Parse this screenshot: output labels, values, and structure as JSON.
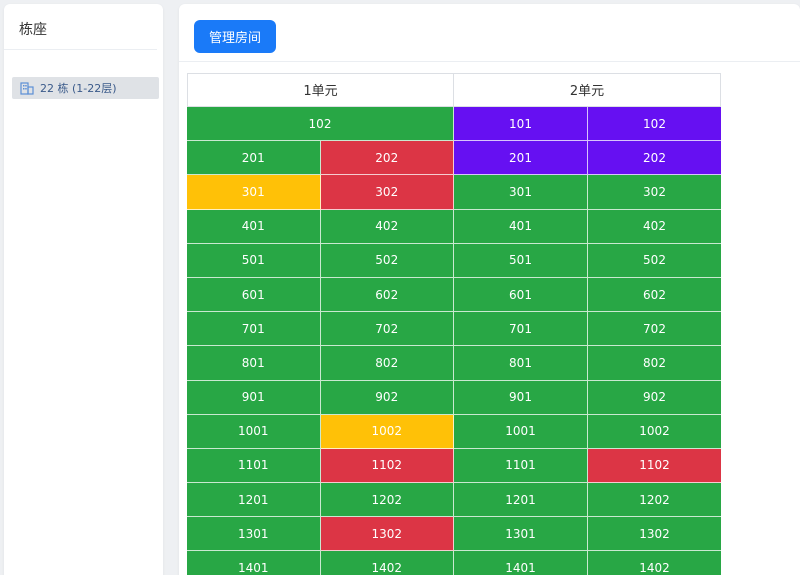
{
  "sidebar": {
    "title": "栋座",
    "items": [
      {
        "label": "22 栋 (1-22层)"
      }
    ]
  },
  "toolbar": {
    "manage_label": "管理房间"
  },
  "colors": {
    "green": "#28a745",
    "red": "#dc3545",
    "yellow": "#ffc107",
    "purple": "#6610f2",
    "button_blue": "#1a7af8"
  },
  "units": [
    {
      "name": "1单元",
      "rows": [
        [
          {
            "room": "102",
            "status": "green"
          }
        ],
        [
          {
            "room": "201",
            "status": "green"
          },
          {
            "room": "202",
            "status": "red"
          }
        ],
        [
          {
            "room": "301",
            "status": "yellow"
          },
          {
            "room": "302",
            "status": "red"
          }
        ],
        [
          {
            "room": "401",
            "status": "green"
          },
          {
            "room": "402",
            "status": "green"
          }
        ],
        [
          {
            "room": "501",
            "status": "green"
          },
          {
            "room": "502",
            "status": "green"
          }
        ],
        [
          {
            "room": "601",
            "status": "green"
          },
          {
            "room": "602",
            "status": "green"
          }
        ],
        [
          {
            "room": "701",
            "status": "green"
          },
          {
            "room": "702",
            "status": "green"
          }
        ],
        [
          {
            "room": "801",
            "status": "green"
          },
          {
            "room": "802",
            "status": "green"
          }
        ],
        [
          {
            "room": "901",
            "status": "green"
          },
          {
            "room": "902",
            "status": "green"
          }
        ],
        [
          {
            "room": "1001",
            "status": "green"
          },
          {
            "room": "1002",
            "status": "yellow"
          }
        ],
        [
          {
            "room": "1101",
            "status": "green"
          },
          {
            "room": "1102",
            "status": "red"
          }
        ],
        [
          {
            "room": "1201",
            "status": "green"
          },
          {
            "room": "1202",
            "status": "green"
          }
        ],
        [
          {
            "room": "1301",
            "status": "green"
          },
          {
            "room": "1302",
            "status": "red"
          }
        ],
        [
          {
            "room": "1401",
            "status": "green"
          },
          {
            "room": "1402",
            "status": "green"
          }
        ]
      ]
    },
    {
      "name": "2单元",
      "rows": [
        [
          {
            "room": "101",
            "status": "purple"
          },
          {
            "room": "102",
            "status": "purple"
          }
        ],
        [
          {
            "room": "201",
            "status": "purple"
          },
          {
            "room": "202",
            "status": "purple"
          }
        ],
        [
          {
            "room": "301",
            "status": "green"
          },
          {
            "room": "302",
            "status": "green"
          }
        ],
        [
          {
            "room": "401",
            "status": "green"
          },
          {
            "room": "402",
            "status": "green"
          }
        ],
        [
          {
            "room": "501",
            "status": "green"
          },
          {
            "room": "502",
            "status": "green"
          }
        ],
        [
          {
            "room": "601",
            "status": "green"
          },
          {
            "room": "602",
            "status": "green"
          }
        ],
        [
          {
            "room": "701",
            "status": "green"
          },
          {
            "room": "702",
            "status": "green"
          }
        ],
        [
          {
            "room": "801",
            "status": "green"
          },
          {
            "room": "802",
            "status": "green"
          }
        ],
        [
          {
            "room": "901",
            "status": "green"
          },
          {
            "room": "902",
            "status": "green"
          }
        ],
        [
          {
            "room": "1001",
            "status": "green"
          },
          {
            "room": "1002",
            "status": "green"
          }
        ],
        [
          {
            "room": "1101",
            "status": "green"
          },
          {
            "room": "1102",
            "status": "red"
          }
        ],
        [
          {
            "room": "1201",
            "status": "green"
          },
          {
            "room": "1202",
            "status": "green"
          }
        ],
        [
          {
            "room": "1301",
            "status": "green"
          },
          {
            "room": "1302",
            "status": "green"
          }
        ],
        [
          {
            "room": "1401",
            "status": "green"
          },
          {
            "room": "1402",
            "status": "green"
          }
        ]
      ]
    }
  ]
}
